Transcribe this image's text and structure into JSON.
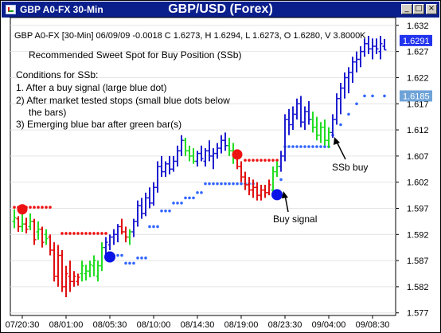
{
  "window": {
    "title": "GBP A0-FX 30-Min",
    "heading": "GBP/USD (Forex)",
    "minimize_glyph": "_",
    "maximize_glyph": "□",
    "close_glyph": "×"
  },
  "info_line": "GBP A0-FX [30-Min] 06/09/09   -0.0018 C 1.6273, H 1.6294, L 1.6273, O 1.6280, V 3.8000K",
  "annotations": {
    "headline": "Recommended Sweet Spot for Buy Position (SSb)",
    "conditions_title": "Conditions for SSb:",
    "conditions": [
      "1. After a buy signal (large blue dot)",
      "2) After market tested stops (small blue dots below",
      "the bars)",
      "3) Emerging blue bar after green bar(s)"
    ],
    "buy_signal": "Buy signal",
    "ssb_buy": "SSb buy"
  },
  "colors": {
    "up": "#1f1fd0",
    "down": "#e01010",
    "green": "#22dd22",
    "stop_dot": "#3366ff",
    "buy_dot": "#0a14e6",
    "sell_dot": "#ee1111",
    "axis_badge": "#2233ee"
  },
  "chart_data": {
    "type": "ohlc",
    "ylim": [
      1.5765,
      1.6335
    ],
    "y_ticks": [
      1.577,
      1.582,
      1.587,
      1.592,
      1.597,
      1.602,
      1.607,
      1.612,
      1.617,
      1.622,
      1.627,
      1.632
    ],
    "y_tick_labels": [
      "1.577",
      "1.582",
      "1.587",
      "1.592",
      "1.597",
      "1.602",
      "1.607",
      "1.612",
      "1.617",
      "1.622",
      "1.627",
      "1.632"
    ],
    "x_tick_labels": [
      "07/20:30",
      "08/01:00",
      "08/05:30",
      "08/10:00",
      "08/14:30",
      "08/19:00",
      "08/23:30",
      "09/04:00",
      "09/08:30"
    ],
    "x_tick_bar_index": [
      2,
      13,
      24,
      35,
      46,
      57,
      68,
      79,
      90
    ],
    "price_badges": [
      {
        "value": 1.6291,
        "label": "1.6291",
        "color": "#2233ee"
      },
      {
        "value": 1.6185,
        "label": "1.6185",
        "color": "#6fa3d8"
      }
    ],
    "bars": [
      {
        "o": 1.5945,
        "h": 1.5968,
        "l": 1.5932,
        "c": 1.5952,
        "t": "g"
      },
      {
        "o": 1.595,
        "h": 1.5955,
        "l": 1.5925,
        "c": 1.5935,
        "t": "d"
      },
      {
        "o": 1.5935,
        "h": 1.596,
        "l": 1.5925,
        "c": 1.594,
        "t": "g"
      },
      {
        "o": 1.594,
        "h": 1.5952,
        "l": 1.5922,
        "c": 1.593,
        "t": "d"
      },
      {
        "o": 1.5935,
        "h": 1.596,
        "l": 1.5928,
        "c": 1.5945,
        "t": "g"
      },
      {
        "o": 1.5945,
        "h": 1.595,
        "l": 1.59,
        "c": 1.591,
        "t": "d"
      },
      {
        "o": 1.5925,
        "h": 1.5945,
        "l": 1.591,
        "c": 1.593,
        "t": "g"
      },
      {
        "o": 1.593,
        "h": 1.5935,
        "l": 1.5895,
        "c": 1.5905,
        "t": "d"
      },
      {
        "o": 1.592,
        "h": 1.593,
        "l": 1.59,
        "c": 1.5912,
        "t": "g"
      },
      {
        "o": 1.5915,
        "h": 1.592,
        "l": 1.588,
        "c": 1.589,
        "t": "d"
      },
      {
        "o": 1.589,
        "h": 1.5905,
        "l": 1.583,
        "c": 1.584,
        "t": "d"
      },
      {
        "o": 1.584,
        "h": 1.59,
        "l": 1.582,
        "c": 1.588,
        "t": "d"
      },
      {
        "o": 1.588,
        "h": 1.589,
        "l": 1.581,
        "c": 1.582,
        "t": "d"
      },
      {
        "o": 1.582,
        "h": 1.586,
        "l": 1.58,
        "c": 1.5845,
        "t": "d"
      },
      {
        "o": 1.584,
        "h": 1.587,
        "l": 1.581,
        "c": 1.583,
        "t": "d"
      },
      {
        "o": 1.583,
        "h": 1.585,
        "l": 1.582,
        "c": 1.584,
        "t": "d"
      },
      {
        "o": 1.583,
        "h": 1.5845,
        "l": 1.5822,
        "c": 1.5838,
        "t": "d"
      },
      {
        "o": 1.5845,
        "h": 1.587,
        "l": 1.583,
        "c": 1.586,
        "t": "g"
      },
      {
        "o": 1.5845,
        "h": 1.5862,
        "l": 1.5832,
        "c": 1.585,
        "t": "g"
      },
      {
        "o": 1.585,
        "h": 1.587,
        "l": 1.5838,
        "c": 1.5862,
        "t": "g"
      },
      {
        "o": 1.586,
        "h": 1.588,
        "l": 1.584,
        "c": 1.587,
        "t": "g"
      },
      {
        "o": 1.584,
        "h": 1.587,
        "l": 1.583,
        "c": 1.586,
        "t": "g"
      },
      {
        "o": 1.586,
        "h": 1.5905,
        "l": 1.585,
        "c": 1.5895,
        "t": "g"
      },
      {
        "o": 1.5895,
        "h": 1.5915,
        "l": 1.588,
        "c": 1.5905,
        "t": "u"
      },
      {
        "o": 1.59,
        "h": 1.592,
        "l": 1.589,
        "c": 1.5915,
        "t": "u"
      },
      {
        "o": 1.5915,
        "h": 1.593,
        "l": 1.59,
        "c": 1.592,
        "t": "u"
      },
      {
        "o": 1.592,
        "h": 1.594,
        "l": 1.5905,
        "c": 1.5935,
        "t": "u"
      },
      {
        "o": 1.5935,
        "h": 1.595,
        "l": 1.592,
        "c": 1.5925,
        "t": "d"
      },
      {
        "o": 1.5925,
        "h": 1.5935,
        "l": 1.5905,
        "c": 1.5915,
        "t": "d"
      },
      {
        "o": 1.5915,
        "h": 1.593,
        "l": 1.59,
        "c": 1.5925,
        "t": "g"
      },
      {
        "o": 1.5925,
        "h": 1.595,
        "l": 1.5915,
        "c": 1.5945,
        "t": "u"
      },
      {
        "o": 1.5945,
        "h": 1.5985,
        "l": 1.5935,
        "c": 1.5975,
        "t": "u"
      },
      {
        "o": 1.5975,
        "h": 1.599,
        "l": 1.595,
        "c": 1.596,
        "t": "u"
      },
      {
        "o": 1.596,
        "h": 1.6,
        "l": 1.5955,
        "c": 1.599,
        "t": "u"
      },
      {
        "o": 1.599,
        "h": 1.601,
        "l": 1.597,
        "c": 1.598,
        "t": "u"
      },
      {
        "o": 1.598,
        "h": 1.602,
        "l": 1.5975,
        "c": 1.601,
        "t": "u"
      },
      {
        "o": 1.601,
        "h": 1.606,
        "l": 1.6,
        "c": 1.605,
        "t": "u"
      },
      {
        "o": 1.605,
        "h": 1.607,
        "l": 1.603,
        "c": 1.604,
        "t": "u"
      },
      {
        "o": 1.604,
        "h": 1.606,
        "l": 1.603,
        "c": 1.6055,
        "t": "u"
      },
      {
        "o": 1.6055,
        "h": 1.607,
        "l": 1.6035,
        "c": 1.6045,
        "t": "u"
      },
      {
        "o": 1.6045,
        "h": 1.607,
        "l": 1.604,
        "c": 1.606,
        "t": "u"
      },
      {
        "o": 1.606,
        "h": 1.609,
        "l": 1.605,
        "c": 1.608,
        "t": "u"
      },
      {
        "o": 1.608,
        "h": 1.611,
        "l": 1.607,
        "c": 1.61,
        "t": "u"
      },
      {
        "o": 1.61,
        "h": 1.6105,
        "l": 1.607,
        "c": 1.608,
        "t": "g"
      },
      {
        "o": 1.608,
        "h": 1.609,
        "l": 1.606,
        "c": 1.607,
        "t": "g"
      },
      {
        "o": 1.607,
        "h": 1.6085,
        "l": 1.6055,
        "c": 1.606,
        "t": "g"
      },
      {
        "o": 1.606,
        "h": 1.608,
        "l": 1.605,
        "c": 1.6075,
        "t": "u"
      },
      {
        "o": 1.6075,
        "h": 1.609,
        "l": 1.606,
        "c": 1.6065,
        "t": "u"
      },
      {
        "o": 1.606,
        "h": 1.6085,
        "l": 1.605,
        "c": 1.608,
        "t": "u"
      },
      {
        "o": 1.608,
        "h": 1.61,
        "l": 1.606,
        "c": 1.607,
        "t": "u"
      },
      {
        "o": 1.607,
        "h": 1.6085,
        "l": 1.6045,
        "c": 1.6075,
        "t": "u"
      },
      {
        "o": 1.6075,
        "h": 1.6095,
        "l": 1.6065,
        "c": 1.6085,
        "t": "u"
      },
      {
        "o": 1.6085,
        "h": 1.611,
        "l": 1.6075,
        "c": 1.61,
        "t": "u"
      },
      {
        "o": 1.61,
        "h": 1.6115,
        "l": 1.608,
        "c": 1.609,
        "t": "u"
      },
      {
        "o": 1.609,
        "h": 1.6105,
        "l": 1.607,
        "c": 1.608,
        "t": "g"
      },
      {
        "o": 1.608,
        "h": 1.6095,
        "l": 1.6055,
        "c": 1.607,
        "t": "g"
      },
      {
        "o": 1.607,
        "h": 1.608,
        "l": 1.6045,
        "c": 1.605,
        "t": "d"
      },
      {
        "o": 1.605,
        "h": 1.606,
        "l": 1.602,
        "c": 1.603,
        "t": "d"
      },
      {
        "o": 1.603,
        "h": 1.604,
        "l": 1.6005,
        "c": 1.6015,
        "t": "d"
      },
      {
        "o": 1.6015,
        "h": 1.603,
        "l": 1.5995,
        "c": 1.6005,
        "t": "d"
      },
      {
        "o": 1.6005,
        "h": 1.6025,
        "l": 1.599,
        "c": 1.601,
        "t": "d"
      },
      {
        "o": 1.601,
        "h": 1.602,
        "l": 1.5985,
        "c": 1.5995,
        "t": "d"
      },
      {
        "o": 1.5995,
        "h": 1.6015,
        "l": 1.5985,
        "c": 1.6005,
        "t": "d"
      },
      {
        "o": 1.6005,
        "h": 1.6015,
        "l": 1.599,
        "c": 1.6,
        "t": "d"
      },
      {
        "o": 1.6,
        "h": 1.6025,
        "l": 1.5995,
        "c": 1.6015,
        "t": "d"
      },
      {
        "o": 1.6005,
        "h": 1.605,
        "l": 1.5995,
        "c": 1.604,
        "t": "g"
      },
      {
        "o": 1.604,
        "h": 1.606,
        "l": 1.603,
        "c": 1.605,
        "t": "g"
      },
      {
        "o": 1.605,
        "h": 1.608,
        "l": 1.604,
        "c": 1.607,
        "t": "u"
      },
      {
        "o": 1.607,
        "h": 1.615,
        "l": 1.606,
        "c": 1.614,
        "t": "u"
      },
      {
        "o": 1.614,
        "h": 1.616,
        "l": 1.611,
        "c": 1.613,
        "t": "u"
      },
      {
        "o": 1.613,
        "h": 1.6165,
        "l": 1.612,
        "c": 1.615,
        "t": "u"
      },
      {
        "o": 1.615,
        "h": 1.618,
        "l": 1.614,
        "c": 1.617,
        "t": "u"
      },
      {
        "o": 1.617,
        "h": 1.6185,
        "l": 1.6125,
        "c": 1.6135,
        "t": "u"
      },
      {
        "o": 1.6135,
        "h": 1.6165,
        "l": 1.612,
        "c": 1.6155,
        "t": "u"
      },
      {
        "o": 1.6155,
        "h": 1.6175,
        "l": 1.613,
        "c": 1.614,
        "t": "u"
      },
      {
        "o": 1.614,
        "h": 1.6155,
        "l": 1.6115,
        "c": 1.6125,
        "t": "g"
      },
      {
        "o": 1.6125,
        "h": 1.6145,
        "l": 1.61,
        "c": 1.611,
        "t": "g"
      },
      {
        "o": 1.611,
        "h": 1.6135,
        "l": 1.6095,
        "c": 1.6125,
        "t": "g"
      },
      {
        "o": 1.6125,
        "h": 1.614,
        "l": 1.609,
        "c": 1.61,
        "t": "g"
      },
      {
        "o": 1.61,
        "h": 1.6125,
        "l": 1.6085,
        "c": 1.6115,
        "t": "g"
      },
      {
        "o": 1.6115,
        "h": 1.615,
        "l": 1.6105,
        "c": 1.614,
        "t": "u"
      },
      {
        "o": 1.614,
        "h": 1.619,
        "l": 1.613,
        "c": 1.618,
        "t": "u"
      },
      {
        "o": 1.618,
        "h": 1.621,
        "l": 1.615,
        "c": 1.62,
        "t": "u"
      },
      {
        "o": 1.62,
        "h": 1.623,
        "l": 1.618,
        "c": 1.622,
        "t": "u"
      },
      {
        "o": 1.622,
        "h": 1.624,
        "l": 1.619,
        "c": 1.623,
        "t": "u"
      },
      {
        "o": 1.623,
        "h": 1.626,
        "l": 1.621,
        "c": 1.625,
        "t": "u"
      },
      {
        "o": 1.625,
        "h": 1.627,
        "l": 1.623,
        "c": 1.6255,
        "t": "u"
      },
      {
        "o": 1.6255,
        "h": 1.628,
        "l": 1.624,
        "c": 1.627,
        "t": "u"
      },
      {
        "o": 1.627,
        "h": 1.6295,
        "l": 1.626,
        "c": 1.6285,
        "t": "u"
      },
      {
        "o": 1.6285,
        "h": 1.63,
        "l": 1.6265,
        "c": 1.6275,
        "t": "u"
      },
      {
        "o": 1.6275,
        "h": 1.6295,
        "l": 1.6255,
        "c": 1.628,
        "t": "u"
      },
      {
        "o": 1.628,
        "h": 1.6295,
        "l": 1.6265,
        "c": 1.6275,
        "t": "u"
      },
      {
        "o": 1.627,
        "h": 1.63,
        "l": 1.6255,
        "c": 1.6285,
        "t": "u"
      },
      {
        "o": 1.628,
        "h": 1.6294,
        "l": 1.6273,
        "c": 1.6273,
        "t": "u"
      }
    ],
    "stop_dots_red": [
      {
        "from": 0,
        "to": 9,
        "value": 1.5972
      },
      {
        "from": 12,
        "to": 23,
        "value": 1.5922
      },
      {
        "from": 58,
        "to": 66,
        "value": 1.6062
      }
    ],
    "stop_dots_blue": [
      {
        "from": 24,
        "to": 27,
        "value": 1.588
      },
      {
        "from": 28,
        "to": 30,
        "value": 1.5865
      },
      {
        "from": 31,
        "to": 33,
        "value": 1.5875
      },
      {
        "from": 34,
        "to": 36,
        "value": 1.5935
      },
      {
        "from": 37,
        "to": 39,
        "value": 1.5965
      },
      {
        "from": 40,
        "to": 42,
        "value": 1.598
      },
      {
        "from": 43,
        "to": 45,
        "value": 1.599
      },
      {
        "from": 46,
        "to": 47,
        "value": 1.6
      },
      {
        "from": 48,
        "to": 60,
        "value": 1.6017
      },
      {
        "from": 67,
        "to": 67,
        "value": 1.6025
      },
      {
        "from": 68,
        "to": 79,
        "value": 1.6088
      },
      {
        "from": 80,
        "to": 80,
        "value": 1.611
      },
      {
        "from": 82,
        "to": 82,
        "value": 1.613
      },
      {
        "from": 84,
        "to": 84,
        "value": 1.615
      },
      {
        "from": 86,
        "to": 86,
        "value": 1.617
      },
      {
        "from": 88,
        "to": 88,
        "value": 1.6185
      },
      {
        "from": 90,
        "to": 90,
        "value": 1.6185
      },
      {
        "from": 93,
        "to": 93,
        "value": 1.6185
      }
    ],
    "signals": [
      {
        "type": "sell",
        "bar": 2,
        "value": 1.5968
      },
      {
        "type": "buy",
        "bar": 24,
        "value": 1.5877
      },
      {
        "type": "sell",
        "bar": 56,
        "value": 1.6073
      },
      {
        "type": "buy",
        "bar": 66,
        "value": 1.5996
      }
    ]
  }
}
